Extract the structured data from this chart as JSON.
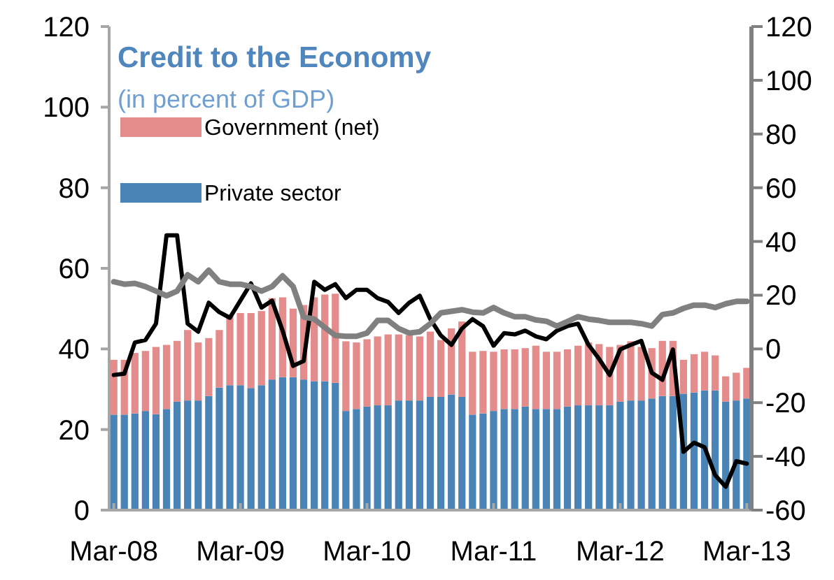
{
  "chart_data": {
    "type": "bar",
    "title": "Credit to the Economy",
    "subtitle": "(in percent of GDP)",
    "categories": [
      "Mar-08",
      null,
      null,
      null,
      null,
      null,
      null,
      null,
      null,
      null,
      null,
      null,
      "Mar-09",
      null,
      null,
      null,
      null,
      null,
      null,
      null,
      null,
      null,
      null,
      null,
      "Mar-10",
      null,
      null,
      null,
      null,
      null,
      null,
      null,
      null,
      null,
      null,
      null,
      "Mar-11",
      null,
      null,
      null,
      null,
      null,
      null,
      null,
      null,
      null,
      null,
      null,
      "Mar-12",
      null,
      null,
      null,
      null,
      null,
      null,
      null,
      null,
      null,
      null,
      null,
      "Mar-13"
    ],
    "stacked": true,
    "legend": "top left",
    "grid": false,
    "ylim": [
      0,
      120
    ],
    "yticks": [
      0,
      20,
      40,
      60,
      80,
      100,
      120
    ],
    "y2lim": [
      -60,
      120
    ],
    "y2ticks": [
      -60,
      -40,
      -20,
      0,
      20,
      40,
      60,
      80,
      100,
      120
    ],
    "series": [
      {
        "name": "Private sector",
        "color": "#4a84b6",
        "values": [
          23.7,
          23.7,
          24,
          24.6,
          23.8,
          25.1,
          26.9,
          27.2,
          27.2,
          28.3,
          30.4,
          31,
          31,
          30.3,
          31,
          32.4,
          33,
          33,
          32.4,
          32,
          32,
          31.6,
          24.6,
          25.1,
          25.7,
          26,
          26,
          27.2,
          27.2,
          27.2,
          28.1,
          28.1,
          28.7,
          28.1,
          23.7,
          24,
          24.6,
          25.1,
          25.1,
          25.7,
          25.1,
          25.1,
          25.1,
          25.7,
          26,
          26,
          26,
          26,
          26.9,
          27.2,
          27.2,
          27.7,
          28.3,
          28.3,
          28.9,
          29.2,
          29.7,
          29.7,
          26.9,
          27.2,
          27.7
        ]
      },
      {
        "name": "Government (net)",
        "color": "#e48b8b",
        "values": [
          13.6,
          13.6,
          15,
          14.9,
          16.7,
          15.9,
          15.1,
          17.5,
          14.4,
          14.4,
          14.3,
          17,
          17.9,
          18.6,
          18.4,
          20.2,
          19.8,
          17,
          18.5,
          20.8,
          21.5,
          22.1,
          17.3,
          16.5,
          16.7,
          17.1,
          17.6,
          16.4,
          16.2,
          15.9,
          16.2,
          14.1,
          16.4,
          18.7,
          15.6,
          15.5,
          14.7,
          14.8,
          14.8,
          14.5,
          15.7,
          14.2,
          14.2,
          14.2,
          14.8,
          15.6,
          15.2,
          14.5,
          14.1,
          14.7,
          13.3,
          12.5,
          13.7,
          13.7,
          8.4,
          9.5,
          9.6,
          8.7,
          6.3,
          6.9,
          7.6
        ]
      },
      {
        "type": "line",
        "axis": "y2",
        "color": "#000000",
        "values": [
          -9.7,
          -9.2,
          2.4,
          3.3,
          9.4,
          42.3,
          42.3,
          9.4,
          6.4,
          17.2,
          13.7,
          11.6,
          18,
          24.4,
          15.4,
          18,
          6.8,
          -6.3,
          -4.5,
          25,
          22,
          24.1,
          18.9,
          22,
          22,
          18.9,
          17.5,
          13.4,
          17.2,
          19.8,
          11.1,
          5,
          1.5,
          7.6,
          11.1,
          8.5,
          1.2,
          5.9,
          5.4,
          6.8,
          4.7,
          3.6,
          6.8,
          8.5,
          9.4,
          1.5,
          -3.7,
          -9.7,
          -0.2,
          1.5,
          3,
          -8.9,
          -11.5,
          -0.2,
          -38.3,
          -34.9,
          -36.6,
          -47,
          -51.3,
          -41.8,
          -42.7
        ]
      },
      {
        "type": "line",
        "axis": "y2",
        "color": "#808080",
        "values": [
          25,
          24.1,
          24.4,
          23.2,
          21.5,
          19.8,
          21.5,
          27.6,
          25,
          29.3,
          25,
          24.1,
          24.1,
          23.2,
          21.5,
          23.2,
          27.2,
          23.2,
          11.9,
          11.1,
          8,
          5,
          4.7,
          4.7,
          5.9,
          10.6,
          10.6,
          7.6,
          5.9,
          6.4,
          9.4,
          13.4,
          14,
          14.6,
          13.7,
          13.4,
          15.4,
          13.4,
          12,
          12,
          10.8,
          10.3,
          8.5,
          10.2,
          12,
          11.1,
          10.6,
          9.9,
          9.9,
          9.9,
          9.4,
          8.5,
          12.8,
          13.4,
          15.1,
          16.3,
          16.3,
          15.4,
          16.8,
          17.7,
          17.7
        ]
      }
    ]
  }
}
